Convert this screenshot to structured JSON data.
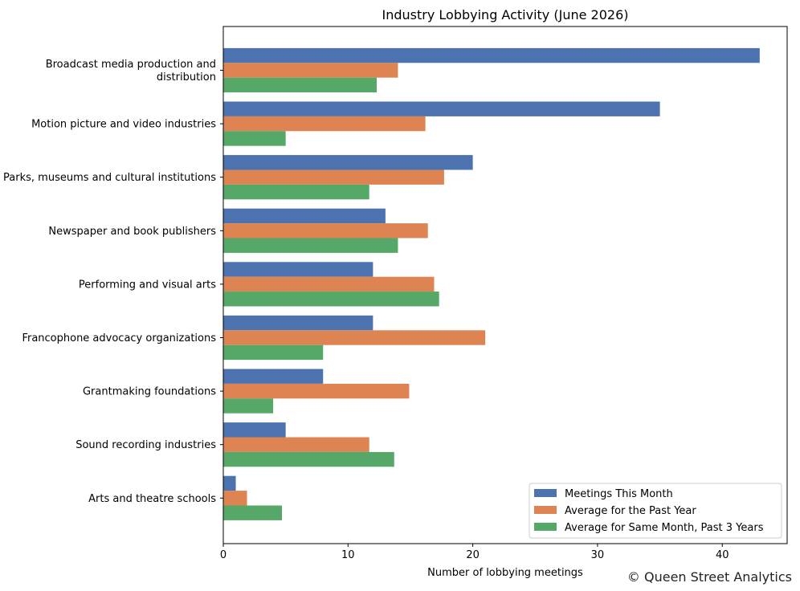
{
  "chart_data": {
    "type": "bar",
    "orientation": "horizontal",
    "title": "Industry Lobbying Activity (June 2026)",
    "xlabel": "Number of lobbying meetings",
    "ylabel": "",
    "xlim": [
      0,
      45.2
    ],
    "xticks": [
      0,
      10,
      20,
      30,
      40
    ],
    "grid": false,
    "legend_position": "bottom-right",
    "categories": [
      "Broadcast media production and distribution",
      "Motion picture and video industries",
      "Parks, museums and cultural institutions",
      "Newspaper and book publishers",
      "Performing and visual arts",
      "Francophone advocacy organizations",
      "Grantmaking foundations",
      "Sound recording industries",
      "Arts and theatre schools"
    ],
    "series": [
      {
        "name": "Meetings This Month",
        "color": "#4c72b0",
        "values": [
          43,
          35,
          20,
          13,
          12,
          12,
          8,
          5,
          1
        ]
      },
      {
        "name": "Average for the Past Year",
        "color": "#dd8452",
        "values": [
          14,
          16.2,
          17.7,
          16.4,
          16.9,
          21,
          14.9,
          11.7,
          1.9
        ]
      },
      {
        "name": "Average for Same Month, Past 3 Years",
        "color": "#55a868",
        "values": [
          12.3,
          5,
          11.7,
          14,
          17.3,
          8,
          4,
          13.7,
          4.7
        ]
      }
    ]
  },
  "credit": "© Queen Street Analytics"
}
